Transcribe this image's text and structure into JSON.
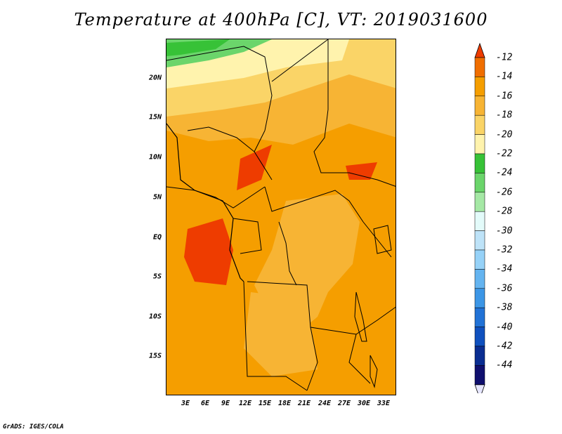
{
  "title": "Temperature at 400hPa [C], VT: 2019031600",
  "footer": "GrADS: IGES/COLA",
  "map": {
    "y_labels": [
      "20N",
      "15N",
      "10N",
      "5N",
      "EQ",
      "5S",
      "10S",
      "15S"
    ],
    "x_labels": [
      "3E",
      "6E",
      "9E",
      "12E",
      "15E",
      "18E",
      "21E",
      "24E",
      "27E",
      "30E",
      "33E"
    ]
  },
  "colorbar": {
    "labels": [
      "-12",
      "-14",
      "-16",
      "-18",
      "-20",
      "-22",
      "-24",
      "-26",
      "-28",
      "-30",
      "-32",
      "-34",
      "-36",
      "-38",
      "-40",
      "-42",
      "-44"
    ],
    "colors": [
      "#ee3c00",
      "#f06e00",
      "#f59e00",
      "#f7b434",
      "#fad467",
      "#fff3ad",
      "#37c237",
      "#6bd56b",
      "#a5e8a5",
      "#e3fbfa",
      "#bee3f8",
      "#96d2f8",
      "#64b4f0",
      "#3c96e6",
      "#2172d6",
      "#0f50be",
      "#0a2d91",
      "#0f0f6e",
      "#e6e6ff"
    ]
  }
}
